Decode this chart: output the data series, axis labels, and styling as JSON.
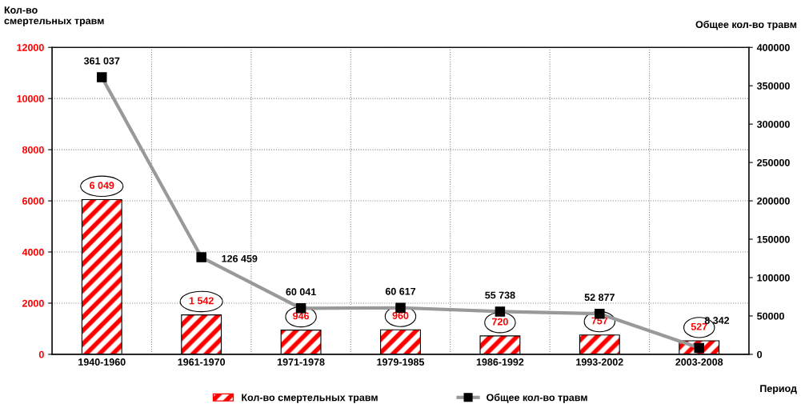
{
  "chart_data": {
    "type": "bar",
    "categories": [
      "1940-1960",
      "1961-1970",
      "1971-1978",
      "1979-1985",
      "1986-1992",
      "1993-2002",
      "2003-2008"
    ],
    "xlabel": "Период",
    "ylabel": "Кол-во\nсмертельных травм",
    "y2label": "Общее кол-во травм",
    "ylim": [
      0,
      12000
    ],
    "yticks": [
      0,
      2000,
      4000,
      6000,
      8000,
      10000,
      12000
    ],
    "y2lim": [
      0,
      400000
    ],
    "y2ticks": [
      0,
      50000,
      100000,
      150000,
      200000,
      250000,
      300000,
      350000,
      400000
    ],
    "grid": true,
    "legend": "bottom",
    "series": [
      {
        "name": "Кол-во смертельных травм",
        "color": "#ff0000",
        "values": [
          6049,
          1542,
          946,
          960,
          720,
          757,
          527
        ],
        "value_labels": [
          "6 049",
          "1 542",
          "946",
          "960",
          "720",
          "757",
          "527"
        ]
      },
      {
        "name": "Общее кол-во травм",
        "type": "line",
        "axis": "y2",
        "color": "#999999",
        "marker": "square",
        "line_style": "solid",
        "values": [
          361037,
          126459,
          60041,
          60617,
          55738,
          52877,
          8342
        ],
        "value_labels": [
          "361 037",
          "126 459",
          "60 041",
          "60 617",
          "55 738",
          "52 877",
          "8 342"
        ]
      }
    ]
  }
}
